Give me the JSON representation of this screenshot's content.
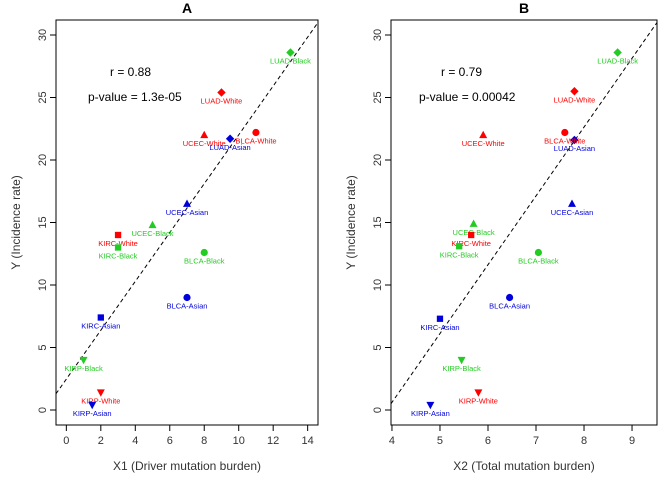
{
  "colors": {
    "White": "#ff0000",
    "Black": "#22cc22",
    "Asian": "#0000dd"
  },
  "chart_data": [
    {
      "type": "scatter",
      "title": "A",
      "xlabel": "X1 (Driver mutation burden)",
      "ylabel": "Y (Incidence rate)",
      "xlim": [
        -0.6,
        14.6
      ],
      "ylim": [
        -1.2,
        31.2
      ],
      "xticks": [
        0,
        2,
        4,
        6,
        8,
        10,
        12,
        14
      ],
      "yticks": [
        0,
        5,
        10,
        15,
        20,
        25,
        30
      ],
      "r_text": "r = 0.88",
      "p_text": "p-value = 1.3e-05",
      "fit_line": [
        [
          -0.6,
          1.3
        ],
        [
          14.6,
          31.0
        ]
      ],
      "points": [
        {
          "label": "LUAD-Black",
          "x": 13.0,
          "y": 28.6,
          "marker": "diamond",
          "group": "Black"
        },
        {
          "label": "LUAD-White",
          "x": 9.0,
          "y": 25.4,
          "marker": "diamond",
          "group": "White"
        },
        {
          "label": "LUAD-Asian",
          "x": 9.5,
          "y": 21.7,
          "marker": "diamond",
          "group": "Asian"
        },
        {
          "label": "UCEC-White",
          "x": 8.0,
          "y": 22.0,
          "marker": "triangle",
          "group": "White"
        },
        {
          "label": "BLCA-White",
          "x": 11.0,
          "y": 22.2,
          "marker": "circle",
          "group": "White"
        },
        {
          "label": "UCEC-Asian",
          "x": 7.0,
          "y": 16.5,
          "marker": "triangle",
          "group": "Asian"
        },
        {
          "label": "UCEC-Black",
          "x": 5.0,
          "y": 14.8,
          "marker": "triangle",
          "group": "Black"
        },
        {
          "label": "KIRC-White",
          "x": 3.0,
          "y": 14.0,
          "marker": "square",
          "group": "White"
        },
        {
          "label": "KIRC-Black",
          "x": 3.0,
          "y": 13.0,
          "marker": "square",
          "group": "Black"
        },
        {
          "label": "BLCA-Black",
          "x": 8.0,
          "y": 12.6,
          "marker": "circle",
          "group": "Black"
        },
        {
          "label": "BLCA-Asian",
          "x": 7.0,
          "y": 9.0,
          "marker": "circle",
          "group": "Asian"
        },
        {
          "label": "KIRC-Asian",
          "x": 2.0,
          "y": 7.4,
          "marker": "square",
          "group": "Asian"
        },
        {
          "label": "KIRP-Black",
          "x": 1.0,
          "y": 4.0,
          "marker": "triangle-down",
          "group": "Black"
        },
        {
          "label": "KIRP-White",
          "x": 2.0,
          "y": 1.4,
          "marker": "triangle-down",
          "group": "White"
        },
        {
          "label": "KIRP-Asian",
          "x": 1.5,
          "y": 0.4,
          "marker": "triangle-down",
          "group": "Asian"
        }
      ]
    },
    {
      "type": "scatter",
      "title": "B",
      "xlabel": "X2 (Total mutation burden)",
      "ylabel": "Y (Incidence rate)",
      "xlim": [
        3.98,
        9.52
      ],
      "ylim": [
        -1.2,
        31.2
      ],
      "xticks": [
        4,
        5,
        6,
        7,
        8,
        9
      ],
      "yticks": [
        0,
        5,
        10,
        15,
        20,
        25,
        30
      ],
      "r_text": "r = 0.79",
      "p_text": "p-value = 0.00042",
      "fit_line": [
        [
          3.98,
          0.5
        ],
        [
          9.52,
          31.0
        ]
      ],
      "points": [
        {
          "label": "LUAD-Black",
          "x": 8.7,
          "y": 28.6,
          "marker": "diamond",
          "group": "Black"
        },
        {
          "label": "LUAD-White",
          "x": 7.8,
          "y": 25.5,
          "marker": "diamond",
          "group": "White"
        },
        {
          "label": "LUAD-Asian",
          "x": 7.8,
          "y": 21.6,
          "marker": "diamond",
          "group": "Asian"
        },
        {
          "label": "UCEC-White",
          "x": 5.9,
          "y": 22.0,
          "marker": "triangle",
          "group": "White"
        },
        {
          "label": "BLCA-White",
          "x": 7.6,
          "y": 22.2,
          "marker": "circle",
          "group": "White"
        },
        {
          "label": "UCEC-Asian",
          "x": 7.75,
          "y": 16.5,
          "marker": "triangle",
          "group": "Asian"
        },
        {
          "label": "UCEC-Black",
          "x": 5.7,
          "y": 14.9,
          "marker": "triangle",
          "group": "Black"
        },
        {
          "label": "KIRC-White",
          "x": 5.65,
          "y": 14.0,
          "marker": "square",
          "group": "White"
        },
        {
          "label": "KIRC-Black",
          "x": 5.4,
          "y": 13.1,
          "marker": "square",
          "group": "Black"
        },
        {
          "label": "BLCA-Black",
          "x": 7.05,
          "y": 12.6,
          "marker": "circle",
          "group": "Black"
        },
        {
          "label": "BLCA-Asian",
          "x": 6.45,
          "y": 9.0,
          "marker": "circle",
          "group": "Asian"
        },
        {
          "label": "KIRC-Asian",
          "x": 5.0,
          "y": 7.3,
          "marker": "square",
          "group": "Asian"
        },
        {
          "label": "KIRP-Black",
          "x": 5.45,
          "y": 4.0,
          "marker": "triangle-down",
          "group": "Black"
        },
        {
          "label": "KIRP-White",
          "x": 5.8,
          "y": 1.4,
          "marker": "triangle-down",
          "group": "White"
        },
        {
          "label": "KIRP-Asian",
          "x": 4.8,
          "y": 0.4,
          "marker": "triangle-down",
          "group": "Asian"
        }
      ]
    }
  ]
}
